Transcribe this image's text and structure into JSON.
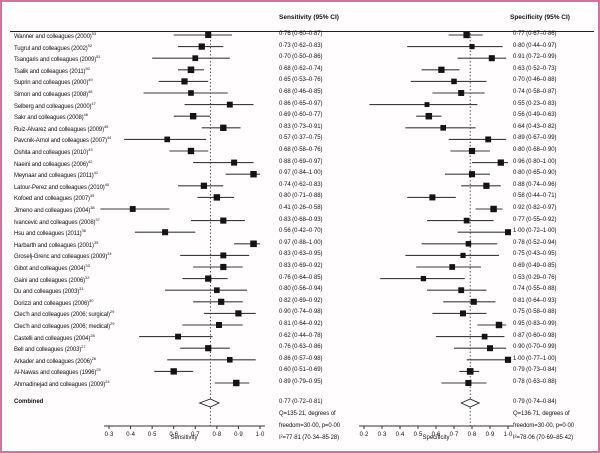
{
  "figure_title": "",
  "combined_label": "Combined",
  "colors": {
    "border": "#d96f9b",
    "marker": "#141414",
    "ci_line": "#3c3c3c"
  },
  "chart_data": {
    "type": "forest",
    "panels": [
      {
        "id": "sensitivity",
        "header": "Sensitivity (95% CI)",
        "axis_label": "Sensitivity",
        "axis_min": 0.3,
        "axis_max": 1.0,
        "tick_values": [
          0.3,
          0.4,
          0.5,
          0.6,
          0.7,
          0.8,
          0.9,
          1.0
        ],
        "ticks": [
          "0·3",
          "0·4",
          "0·5",
          "0·6",
          "0·7",
          "0·8",
          "0·9",
          "1·0"
        ],
        "pooled": {
          "est": 0.77,
          "lo": 0.72,
          "hi": 0.81
        },
        "stats_lines": [
          "0·77 (0·72–0·81)",
          "Q=135·21, degrees of",
          "freedom=30·00, p=0·00",
          "I²=77·81 (70·34–85·28)"
        ]
      },
      {
        "id": "specificity",
        "header": "Specificity (95% CI)",
        "axis_label": "Specificity",
        "axis_min": 0.2,
        "axis_max": 1.0,
        "tick_values": [
          0.2,
          0.3,
          0.4,
          0.5,
          0.6,
          0.7,
          0.8,
          0.9,
          1.0
        ],
        "ticks": [
          "0·2",
          "0·3",
          "0·4",
          "0·5",
          "0·6",
          "0·7",
          "0·8",
          "0·9",
          "1·0"
        ],
        "pooled": {
          "est": 0.79,
          "lo": 0.74,
          "hi": 0.84
        },
        "stats_lines": [
          "0·79 (0·74–0·84)",
          "Q=136·71, degrees of",
          "freedom=30·00, p=0·00",
          "I²=78·06 (70·69–85·42)"
        ]
      }
    ],
    "studies": [
      {
        "label": "Wanner and colleagues (2000)",
        "ref": "53",
        "sensitivity": {
          "est": 0.76,
          "lo": 0.6,
          "hi": 0.87,
          "text": "0·76 (0·60–0·87)"
        },
        "specificity": {
          "est": 0.77,
          "lo": 0.67,
          "hi": 0.86,
          "text": "0·77 (0·67–0·86)"
        }
      },
      {
        "label": "Tugrul and colleagues (2002)",
        "ref": "52",
        "sensitivity": {
          "est": 0.73,
          "lo": 0.62,
          "hi": 0.83,
          "text": "0·73 (0·62–0·83)"
        },
        "specificity": {
          "est": 0.8,
          "lo": 0.44,
          "hi": 0.97,
          "text": "0·80 (0·44–0·97)"
        }
      },
      {
        "label": "Tsangaris and colleagues (2009)",
        "ref": "51",
        "sensitivity": {
          "est": 0.7,
          "lo": 0.5,
          "hi": 0.86,
          "text": "0·70 (0·50–0·86)"
        },
        "specificity": {
          "est": 0.91,
          "lo": 0.72,
          "hi": 0.99,
          "text": "0·91 (0·72–0·99)"
        }
      },
      {
        "label": "Tsalik and colleagues (2011)",
        "ref": "50",
        "sensitivity": {
          "est": 0.68,
          "lo": 0.62,
          "hi": 0.74,
          "text": "0·68 (0·62–0·74)"
        },
        "specificity": {
          "est": 0.63,
          "lo": 0.52,
          "hi": 0.73,
          "text": "0·63 (0·52–0·73)"
        }
      },
      {
        "label": "Suprin and colleagues (2000)",
        "ref": "49",
        "sensitivity": {
          "est": 0.65,
          "lo": 0.53,
          "hi": 0.76,
          "text": "0·65 (0·53–0·76)"
        },
        "specificity": {
          "est": 0.7,
          "lo": 0.46,
          "hi": 0.88,
          "text": "0·70 (0·46–0·88)"
        }
      },
      {
        "label": "Simon and colleagues (2008)",
        "ref": "48",
        "sensitivity": {
          "est": 0.68,
          "lo": 0.46,
          "hi": 0.85,
          "text": "0·68 (0·46–0·85)"
        },
        "specificity": {
          "est": 0.74,
          "lo": 0.58,
          "hi": 0.87,
          "text": "0·74 (0·58–0·87)"
        }
      },
      {
        "label": "Selberg and colleagues (2000)",
        "ref": "47",
        "sensitivity": {
          "est": 0.86,
          "lo": 0.65,
          "hi": 0.97,
          "text": "0·86 (0·65–0·97)"
        },
        "specificity": {
          "est": 0.55,
          "lo": 0.23,
          "hi": 0.83,
          "text": "0·55 (0·23–0·83)"
        }
      },
      {
        "label": "Sakr and colleagues (2008)",
        "ref": "46",
        "sensitivity": {
          "est": 0.69,
          "lo": 0.6,
          "hi": 0.77,
          "text": "0·69 (0·60–0·77)"
        },
        "specificity": {
          "est": 0.56,
          "lo": 0.49,
          "hi": 0.63,
          "text": "0·56 (0·49–0·63)"
        }
      },
      {
        "label": "Ruiz-Alvarez and colleagues (2009)",
        "ref": "45",
        "sensitivity": {
          "est": 0.83,
          "lo": 0.73,
          "hi": 0.91,
          "text": "0·83 (0·73–0·91)"
        },
        "specificity": {
          "est": 0.64,
          "lo": 0.43,
          "hi": 0.82,
          "text": "0·64 (0·43–0·82)"
        }
      },
      {
        "label": "Pavcnik-Arnol and colleagues (2007)",
        "ref": "44",
        "sensitivity": {
          "est": 0.57,
          "lo": 0.37,
          "hi": 0.75,
          "text": "0·57 (0·37–0·75)"
        },
        "specificity": {
          "est": 0.89,
          "lo": 0.67,
          "hi": 0.99,
          "text": "0·89 (0·67–0·99)"
        }
      },
      {
        "label": "Oshita and colleagues (2010)",
        "ref": "43",
        "sensitivity": {
          "est": 0.68,
          "lo": 0.58,
          "hi": 0.76,
          "text": "0·68 (0·58–0·76)"
        },
        "specificity": {
          "est": 0.8,
          "lo": 0.68,
          "hi": 0.9,
          "text": "0·80 (0·68–0·90)"
        }
      },
      {
        "label": "Naeini and colleagues (2006)",
        "ref": "42",
        "sensitivity": {
          "est": 0.88,
          "lo": 0.69,
          "hi": 0.97,
          "text": "0·88 (0·69–0·97)"
        },
        "specificity": {
          "est": 0.96,
          "lo": 0.8,
          "hi": 1.0,
          "text": "0·96 (0·80–1·00)"
        }
      },
      {
        "label": "Meynaar and colleagues (2011)",
        "ref": "41",
        "sensitivity": {
          "est": 0.97,
          "lo": 0.84,
          "hi": 1.0,
          "text": "0·97 (0·84–1·00)"
        },
        "specificity": {
          "est": 0.8,
          "lo": 0.65,
          "hi": 0.9,
          "text": "0·80 (0·65–0·90)"
        }
      },
      {
        "label": "Latour-Perez and colleagues (2010)",
        "ref": "40",
        "sensitivity": {
          "est": 0.74,
          "lo": 0.62,
          "hi": 0.83,
          "text": "0·74 (0·62–0·83)"
        },
        "specificity": {
          "est": 0.88,
          "lo": 0.74,
          "hi": 0.96,
          "text": "0·88 (0·74–0·96)"
        }
      },
      {
        "label": "Kofoed and colleagues (2007)",
        "ref": "39",
        "sensitivity": {
          "est": 0.8,
          "lo": 0.71,
          "hi": 0.88,
          "text": "0·80 (0·71–0·88)"
        },
        "specificity": {
          "est": 0.58,
          "lo": 0.44,
          "hi": 0.71,
          "text": "0·58 (0·44–0·71)"
        }
      },
      {
        "label": "Jimeno and colleagues (2004)",
        "ref": "38",
        "sensitivity": {
          "est": 0.41,
          "lo": 0.26,
          "hi": 0.58,
          "text": "0·41 (0·26–0·58)"
        },
        "specificity": {
          "est": 0.92,
          "lo": 0.82,
          "hi": 0.97,
          "text": "0·92 (0·82–0·97)"
        }
      },
      {
        "label": "Ivancevic and colleagues (2008)",
        "ref": "37",
        "sensitivity": {
          "est": 0.83,
          "lo": 0.68,
          "hi": 0.93,
          "text": "0·83 (0·68–0·93)"
        },
        "specificity": {
          "est": 0.77,
          "lo": 0.55,
          "hi": 0.92,
          "text": "0·77 (0·55–0·92)"
        }
      },
      {
        "label": "Hsu and colleagues (2011)",
        "ref": "36",
        "sensitivity": {
          "est": 0.56,
          "lo": 0.42,
          "hi": 0.7,
          "text": "0·56 (0·42–0·70)"
        },
        "specificity": {
          "est": 1.0,
          "lo": 0.72,
          "hi": 1.0,
          "text": "1·00 (0·72–1·00)"
        }
      },
      {
        "label": "Harbarth and colleagues (2001)",
        "ref": "35",
        "sensitivity": {
          "est": 0.97,
          "lo": 0.88,
          "hi": 1.0,
          "text": "0·97 (0·88–1·00)"
        },
        "specificity": {
          "est": 0.78,
          "lo": 0.52,
          "hi": 0.94,
          "text": "0·78 (0·52–0·94)"
        }
      },
      {
        "label": "Groselj-Grenc and colleagues (2009)",
        "ref": "34",
        "sensitivity": {
          "est": 0.83,
          "lo": 0.63,
          "hi": 0.95,
          "text": "0·83 (0·63–0·95)"
        },
        "specificity": {
          "est": 0.75,
          "lo": 0.43,
          "hi": 0.95,
          "text": "0·75 (0·43–0·95)"
        }
      },
      {
        "label": "Gibot and colleagues (2004)",
        "ref": "33",
        "sensitivity": {
          "est": 0.83,
          "lo": 0.69,
          "hi": 0.92,
          "text": "0·83 (0·69–0·92)"
        },
        "specificity": {
          "est": 0.69,
          "lo": 0.49,
          "hi": 0.85,
          "text": "0·69 (0·49–0·85)"
        }
      },
      {
        "label": "Gaini and colleagues (2006)",
        "ref": "32",
        "sensitivity": {
          "est": 0.76,
          "lo": 0.64,
          "hi": 0.85,
          "text": "0·76 (0·64–0·85)"
        },
        "specificity": {
          "est": 0.53,
          "lo": 0.29,
          "hi": 0.76,
          "text": "0·53 (0·29–0·76)"
        }
      },
      {
        "label": "Du and colleagues (2003)",
        "ref": "31",
        "sensitivity": {
          "est": 0.8,
          "lo": 0.56,
          "hi": 0.94,
          "text": "0·80 (0·56–0·94)"
        },
        "specificity": {
          "est": 0.74,
          "lo": 0.55,
          "hi": 0.88,
          "text": "0·74 (0·55–0·88)"
        }
      },
      {
        "label": "Dorizzi and colleagues (2006)",
        "ref": "30",
        "sensitivity": {
          "est": 0.82,
          "lo": 0.69,
          "hi": 0.92,
          "text": "0·82 (0·69–0·92)"
        },
        "specificity": {
          "est": 0.81,
          "lo": 0.64,
          "hi": 0.93,
          "text": "0·81 (0·64–0·93)"
        }
      },
      {
        "label": "Clec'h and colleagues (2006; surgical)",
        "ref": "29",
        "sensitivity": {
          "est": 0.9,
          "lo": 0.74,
          "hi": 0.98,
          "text": "0·90 (0·74–0·98)"
        },
        "specificity": {
          "est": 0.75,
          "lo": 0.58,
          "hi": 0.88,
          "text": "0·75 (0·58–0·88)"
        }
      },
      {
        "label": "Clec'h and colleagues (2006; medical)",
        "ref": "29",
        "sensitivity": {
          "est": 0.81,
          "lo": 0.64,
          "hi": 0.92,
          "text": "0·81 (0·64–0·92)"
        },
        "specificity": {
          "est": 0.95,
          "lo": 0.83,
          "hi": 0.99,
          "text": "0·95 (0·83–0·99)"
        }
      },
      {
        "label": "Castelli and colleagues (2004)",
        "ref": "28",
        "sensitivity": {
          "est": 0.62,
          "lo": 0.44,
          "hi": 0.78,
          "text": "0·62 (0·44–0·78)"
        },
        "specificity": {
          "est": 0.87,
          "lo": 0.6,
          "hi": 0.98,
          "text": "0·87 (0·60–0·98)"
        }
      },
      {
        "label": "Bell and colleagues (2003)",
        "ref": "27",
        "sensitivity": {
          "est": 0.76,
          "lo": 0.63,
          "hi": 0.86,
          "text": "0·76 (0·63–0·86)"
        },
        "specificity": {
          "est": 0.9,
          "lo": 0.7,
          "hi": 0.99,
          "text": "0·90 (0·70–0·99)"
        }
      },
      {
        "label": "Arkader and colleagues (2006)",
        "ref": "26",
        "sensitivity": {
          "est": 0.86,
          "lo": 0.57,
          "hi": 0.98,
          "text": "0·86 (0·57–0·98)"
        },
        "specificity": {
          "est": 1.0,
          "lo": 0.77,
          "hi": 1.0,
          "text": "1·00 (0·77–1·00)"
        }
      },
      {
        "label": "Al-Nawas and colleagues (1996)",
        "ref": "25",
        "sensitivity": {
          "est": 0.6,
          "lo": 0.51,
          "hi": 0.69,
          "text": "0·60 (0·51–0·69)"
        },
        "specificity": {
          "est": 0.79,
          "lo": 0.73,
          "hi": 0.84,
          "text": "0·79 (0·73–0·84)"
        }
      },
      {
        "label": "Ahmadinejad and colleagues (2009)",
        "ref": "24",
        "sensitivity": {
          "est": 0.89,
          "lo": 0.79,
          "hi": 0.95,
          "text": "0·89 (0·79–0·95)"
        },
        "specificity": {
          "est": 0.78,
          "lo": 0.63,
          "hi": 0.88,
          "text": "0·78 (0·63–0·88)"
        }
      }
    ]
  }
}
